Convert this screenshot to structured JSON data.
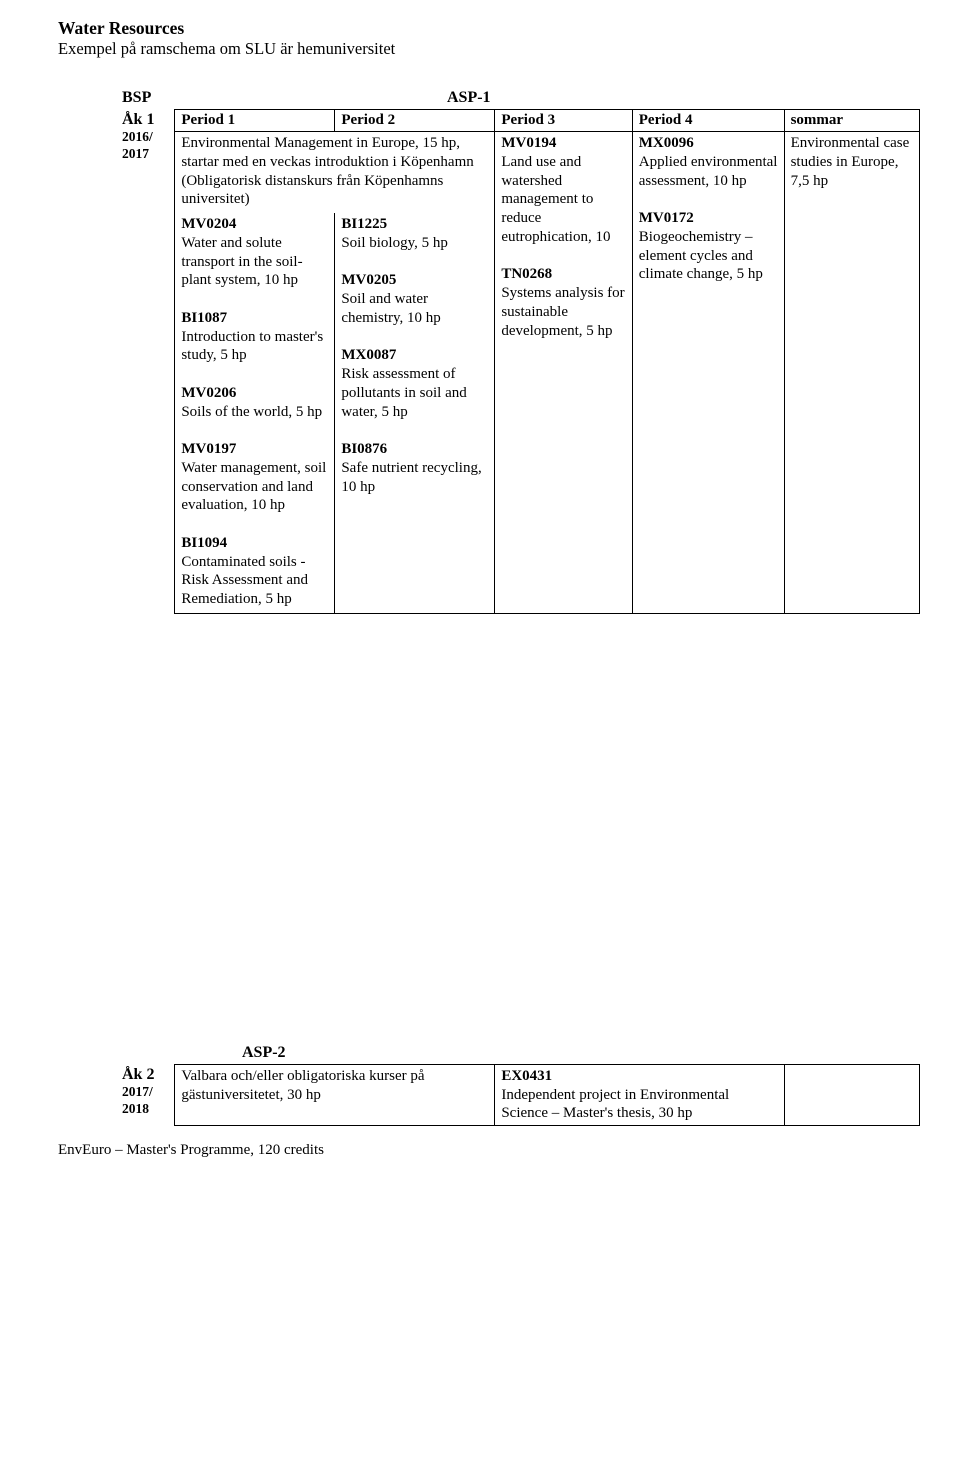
{
  "title": "Water Resources",
  "subtitle": "Exempel på ramschema om SLU är hemuniversitet",
  "heads": {
    "bsp": "BSP",
    "asp1": "ASP-1"
  },
  "periods": {
    "p1": "Period 1",
    "p2": "Period 2",
    "p3": "Period 3",
    "p4": "Period 4",
    "sommar": "sommar"
  },
  "year1": {
    "big": "Åk 1",
    "small": "2016/\n2017"
  },
  "intro": "Environmental Management in Europe, 15 hp, startar med en veckas introduktion i Köpenhamn (Obligatorisk distanskurs från Köpenhamns universitet)",
  "p1": {
    "c1": {
      "code": "MV0204",
      "text": "Water and solute transport in the soil-plant system, 10 hp"
    },
    "c2": {
      "code": "BI1087",
      "text": "Introduction to master's study, 5 hp"
    },
    "c3": {
      "code": "MV0206",
      "text": "Soils of the world, 5 hp"
    },
    "c4": {
      "code": "MV0197",
      "text": "Water management, soil conservation and land evaluation, 10 hp"
    },
    "c5": {
      "code": "BI1094",
      "text": "Contaminated soils - Risk Assessment and Remediation, 5 hp"
    }
  },
  "p2": {
    "c1": {
      "code": "BI1225",
      "text": "Soil biology, 5 hp"
    },
    "c2": {
      "code": "MV0205",
      "text": "Soil and water chemistry, 10 hp"
    },
    "c3": {
      "code": "MX0087",
      "text": "Risk assessment of pollutants in soil and water, 5 hp"
    },
    "c4": {
      "code": "BI0876",
      "text": "Safe nutrient recycling, 10 hp"
    }
  },
  "p3": {
    "c1": {
      "code": "MV0194",
      "text": "Land use and watershed management to reduce eutrophication, 10"
    },
    "c2": {
      "code": "TN0268",
      "text": "Systems analysis for sustainable development, 5 hp"
    }
  },
  "p4": {
    "c1": {
      "code": "MX0096",
      "text": "Applied environmental assessment, 10 hp"
    },
    "c2": {
      "code": "MV0172",
      "text": "Biogeochemistry – element cycles and climate change, 5 hp"
    }
  },
  "sommar": {
    "text": "Environmental case studies in Europe, 7,5 hp"
  },
  "asp2": {
    "head": "ASP-2",
    "year": {
      "big": "Åk 2",
      "small": "2017/\n2018"
    },
    "left": "Valbara och/eller obligatoriska kurser på gästuniversitetet, 30 hp",
    "right": {
      "code": "EX0431",
      "text": "Independent project in Environmental Science – Master's thesis, 30 hp"
    }
  },
  "footer": "EnvEuro – Master's Programme, 120 credits"
}
